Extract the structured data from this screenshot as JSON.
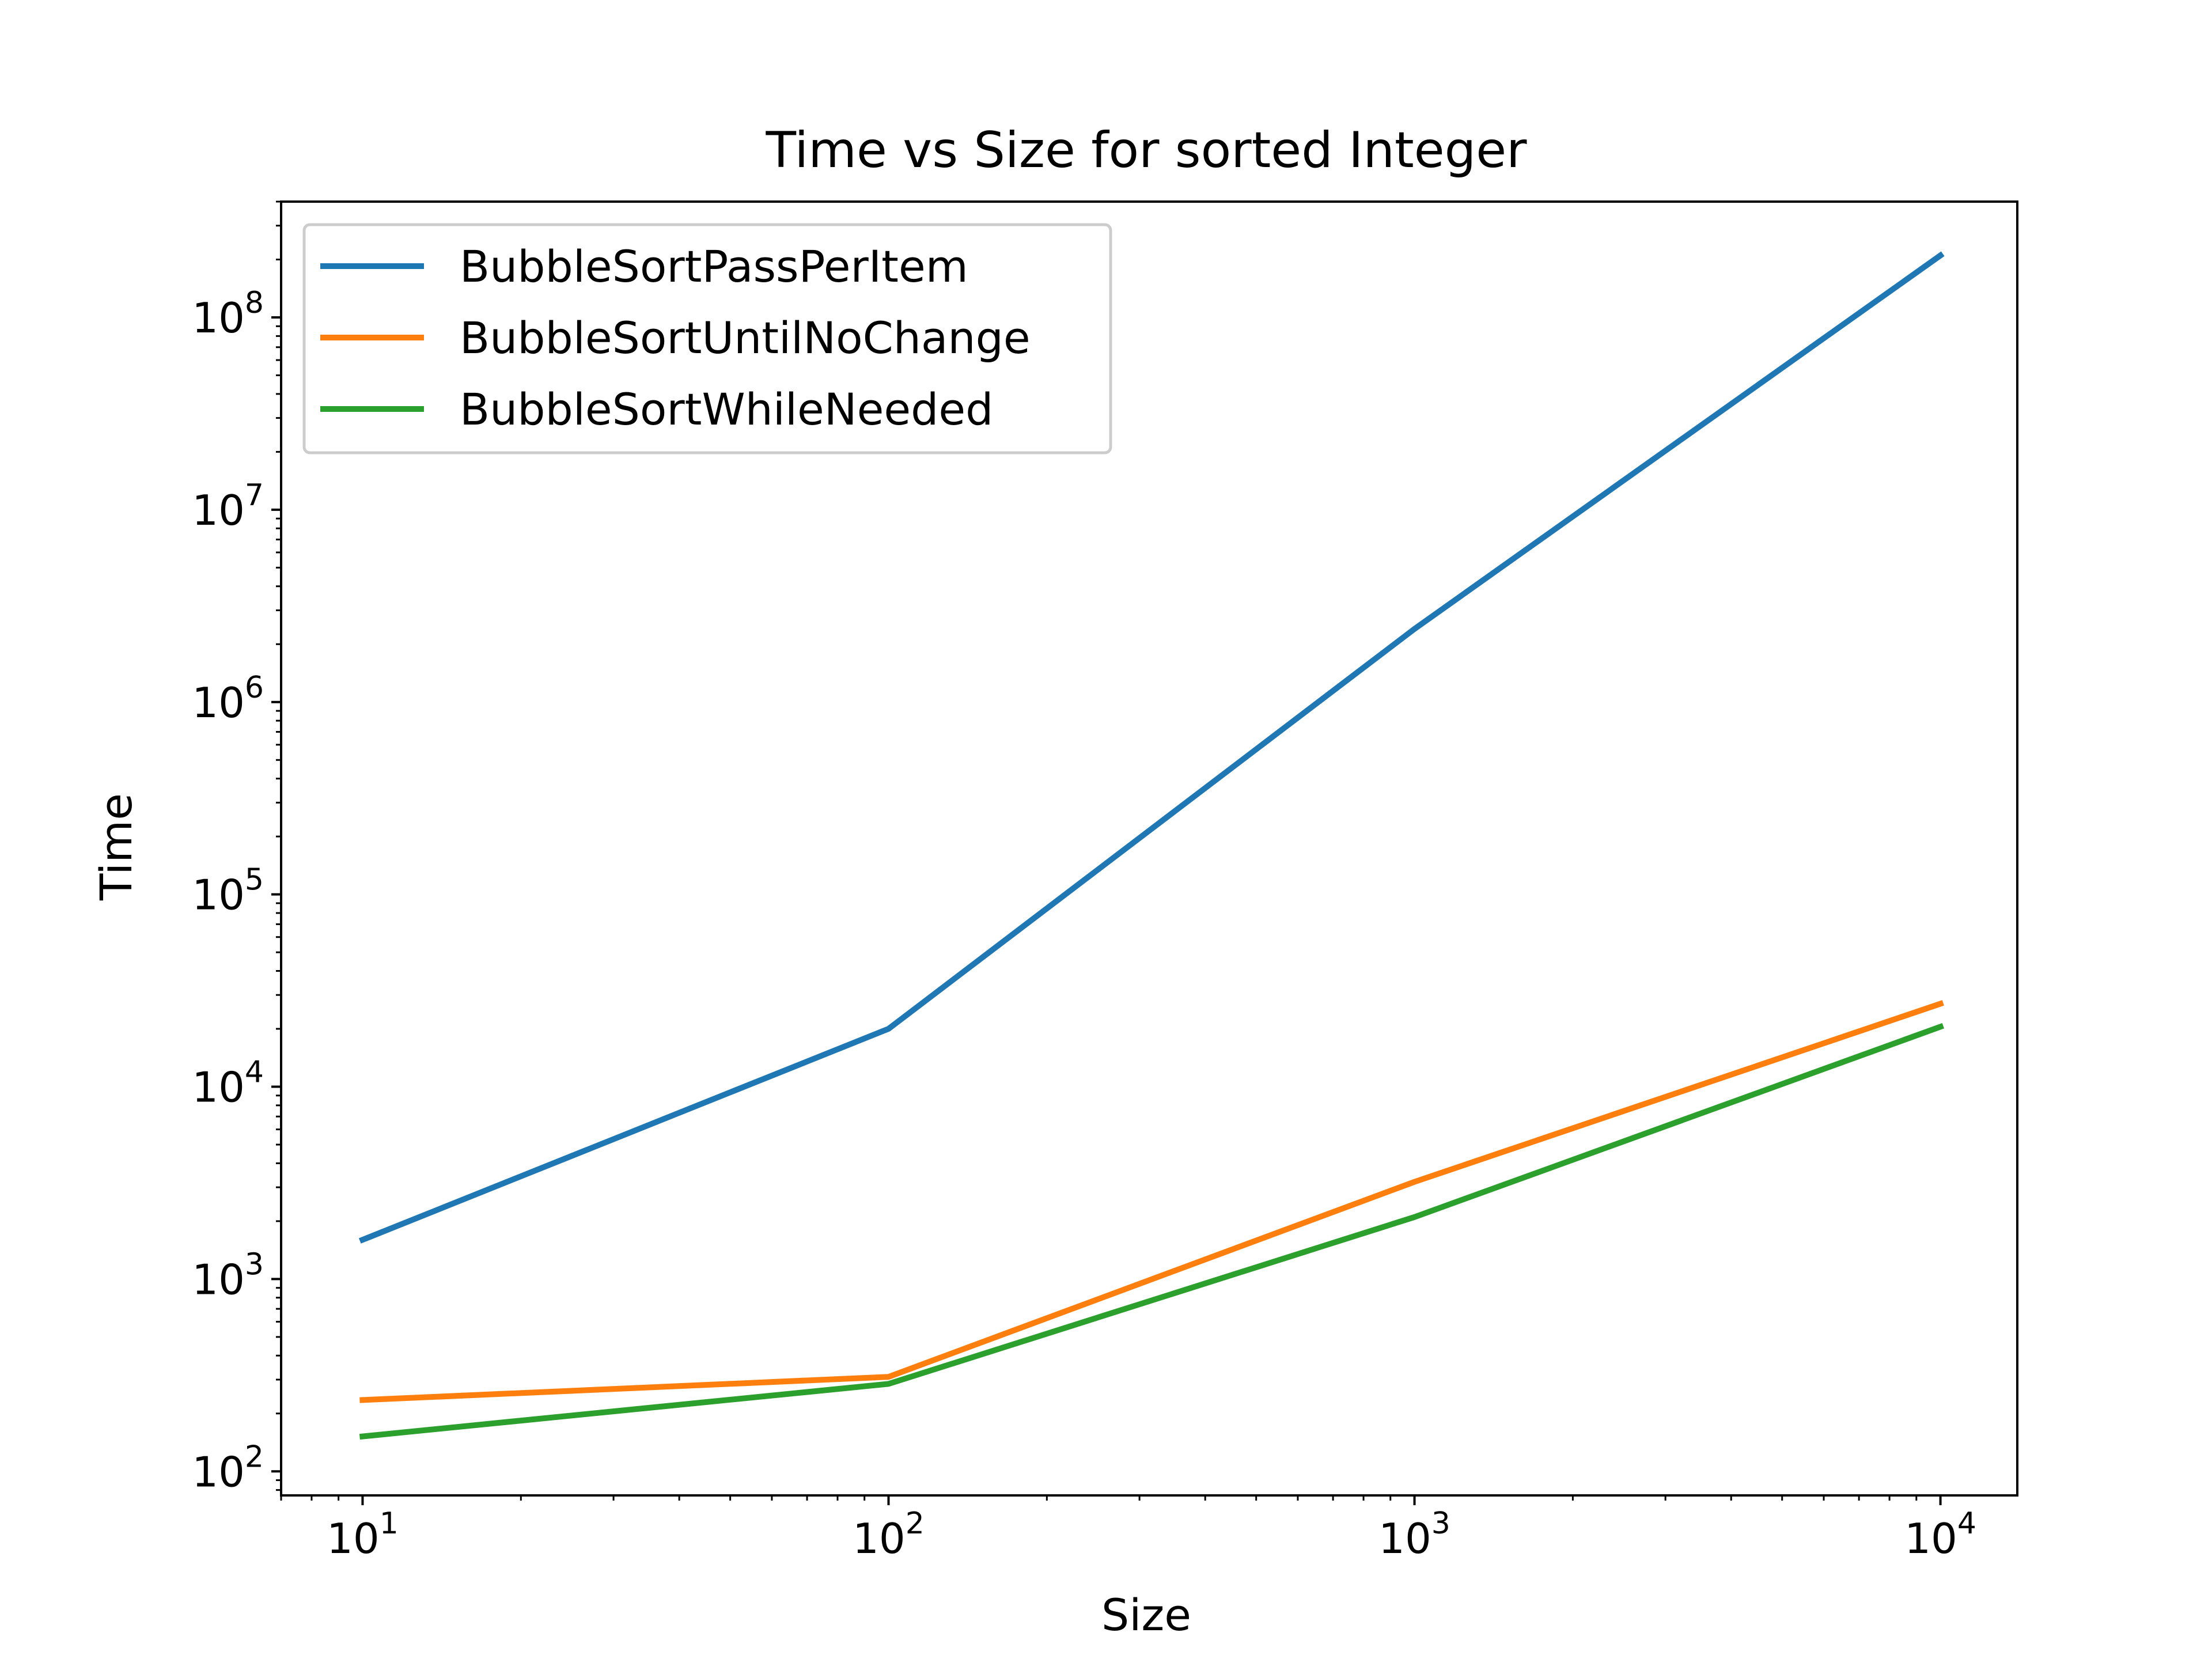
{
  "chart_data": {
    "type": "line",
    "title": "Time vs Size for sorted Integer",
    "xlabel": "Size",
    "ylabel": "Time",
    "xscale": "log",
    "yscale": "log",
    "xlim": [
      7,
      14000
    ],
    "ylim": [
      75,
      400000000
    ],
    "x": [
      10,
      100,
      1000,
      10000
    ],
    "series": [
      {
        "name": "BubbleSortPassPerItem",
        "color": "#1f77b4",
        "values": [
          1600,
          20000,
          2400000,
          210000000
        ]
      },
      {
        "name": "BubbleSortUntilNoChange",
        "color": "#ff7f0e",
        "values": [
          235,
          310,
          3200,
          27000
        ]
      },
      {
        "name": "BubbleSortWhileNeeded",
        "color": "#2ca02c",
        "values": [
          152,
          285,
          2100,
          20500
        ]
      }
    ],
    "x_ticks": [
      {
        "value": 10,
        "base": "10",
        "exp": "1"
      },
      {
        "value": 100,
        "base": "10",
        "exp": "2"
      },
      {
        "value": 1000,
        "base": "10",
        "exp": "3"
      },
      {
        "value": 10000,
        "base": "10",
        "exp": "4"
      }
    ],
    "y_ticks": [
      {
        "value": 100,
        "base": "10",
        "exp": "2"
      },
      {
        "value": 1000,
        "base": "10",
        "exp": "3"
      },
      {
        "value": 10000,
        "base": "10",
        "exp": "4"
      },
      {
        "value": 100000,
        "base": "10",
        "exp": "5"
      },
      {
        "value": 1000000,
        "base": "10",
        "exp": "6"
      },
      {
        "value": 10000000,
        "base": "10",
        "exp": "7"
      },
      {
        "value": 100000000,
        "base": "10",
        "exp": "8"
      }
    ],
    "legend": "upper-left",
    "grid": false
  }
}
